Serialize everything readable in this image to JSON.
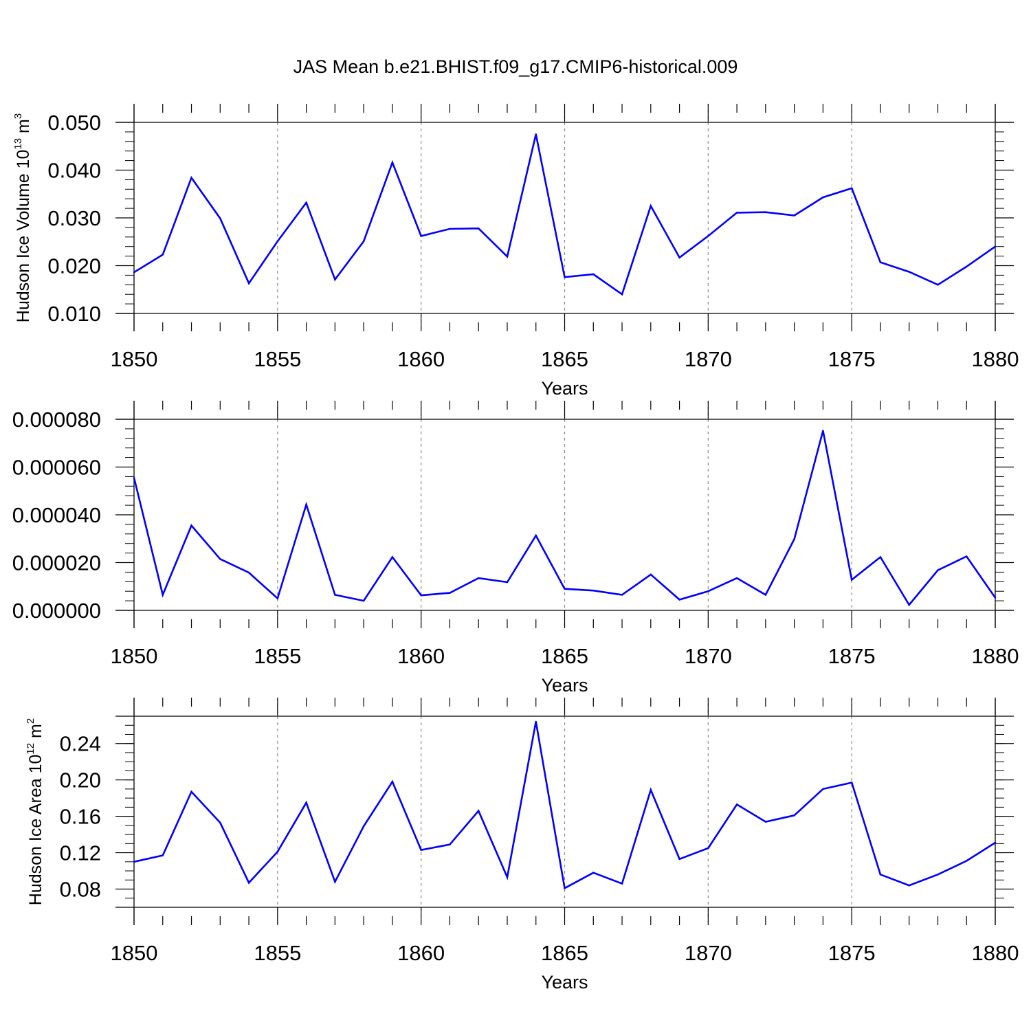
{
  "title": "JAS Mean b.e21.BHIST.f09_g17.CMIP6-historical.009",
  "colors": {
    "series": "#0000ff",
    "axis": "#000000",
    "grid": "#888888"
  },
  "chart_data": [
    {
      "type": "line",
      "xlabel": "Years",
      "ylabel": {
        "text": "Hudson Ice Volume 10",
        "sup": "13",
        "unit": " m",
        "unit_sup": "3"
      },
      "xlim": [
        1850,
        1880
      ],
      "ylim": [
        0.01,
        0.05
      ],
      "x_ticks": [
        "1850",
        "1855",
        "1860",
        "1865",
        "1870",
        "1875",
        "1880"
      ],
      "y_ticks": [
        {
          "value": 0.01,
          "label": "0.010"
        },
        {
          "value": 0.02,
          "label": "0.020"
        },
        {
          "value": 0.03,
          "label": "0.030"
        },
        {
          "value": 0.04,
          "label": "0.040"
        },
        {
          "value": 0.05,
          "label": "0.050"
        }
      ],
      "y_minor_step": 0.002,
      "grid": "vertical dashed at labeled years",
      "x": [
        1850,
        1851,
        1852,
        1853,
        1854,
        1855,
        1856,
        1857,
        1858,
        1859,
        1860,
        1861,
        1862,
        1863,
        1864,
        1865,
        1866,
        1867,
        1868,
        1869,
        1870,
        1871,
        1872,
        1873,
        1874,
        1875,
        1876,
        1877,
        1878,
        1879,
        1880
      ],
      "values": [
        0.0186,
        0.0223,
        0.0384,
        0.0299,
        0.0163,
        0.0251,
        0.0332,
        0.0171,
        0.0251,
        0.0416,
        0.0262,
        0.0277,
        0.0278,
        0.0219,
        0.0475,
        0.0176,
        0.0182,
        0.014,
        0.0325,
        0.0217,
        0.0262,
        0.0311,
        0.0312,
        0.0305,
        0.0343,
        0.0362,
        0.0207,
        0.0187,
        0.016,
        0.0198,
        0.024
      ]
    },
    {
      "type": "line",
      "xlabel": "Years",
      "ylabel": null,
      "xlim": [
        1850,
        1880
      ],
      "ylim": [
        0,
        8e-05
      ],
      "x_ticks": [
        "1850",
        "1855",
        "1860",
        "1865",
        "1870",
        "1875",
        "1880"
      ],
      "y_ticks": [
        {
          "value": 0.0,
          "label": "0.000000"
        },
        {
          "value": 2e-05,
          "label": "0.000020"
        },
        {
          "value": 4e-05,
          "label": "0.000040"
        },
        {
          "value": 6e-05,
          "label": "0.000060"
        },
        {
          "value": 8e-05,
          "label": "0.000080"
        }
      ],
      "y_minor_step": 4e-06,
      "grid": "vertical dashed at labeled years",
      "x": [
        1850,
        1851,
        1852,
        1853,
        1854,
        1855,
        1856,
        1857,
        1858,
        1859,
        1860,
        1861,
        1862,
        1863,
        1864,
        1865,
        1866,
        1867,
        1868,
        1869,
        1870,
        1871,
        1872,
        1873,
        1874,
        1875,
        1876,
        1877,
        1878,
        1879,
        1880
      ],
      "values": [
        5.55e-05,
        6.5e-06,
        3.55e-05,
        2.15e-05,
        1.58e-05,
        5e-06,
        4.43e-05,
        6.5e-06,
        4e-06,
        2.23e-05,
        6.3e-06,
        7.3e-06,
        1.35e-05,
        1.18e-05,
        3.13e-05,
        9e-06,
        8.3e-06,
        6.5e-06,
        1.5e-05,
        4.5e-06,
        8e-06,
        1.35e-05,
        6.5e-06,
        2.98e-05,
        7.52e-05,
        1.28e-05,
        2.23e-05,
        2.3e-06,
        1.68e-05,
        2.26e-05,
        5.3e-06
      ]
    },
    {
      "type": "line",
      "xlabel": "Years",
      "ylabel": {
        "text": "Hudson Ice Area 10",
        "sup": "12",
        "unit": " m",
        "unit_sup": "2"
      },
      "xlim": [
        1850,
        1880
      ],
      "ylim": [
        0.06,
        0.27
      ],
      "x_ticks": [
        "1850",
        "1855",
        "1860",
        "1865",
        "1870",
        "1875",
        "1880"
      ],
      "y_ticks": [
        {
          "value": 0.08,
          "label": "0.08"
        },
        {
          "value": 0.12,
          "label": "0.12"
        },
        {
          "value": 0.16,
          "label": "0.16"
        },
        {
          "value": 0.2,
          "label": "0.20"
        },
        {
          "value": 0.24,
          "label": "0.24"
        }
      ],
      "y_minor_step": 0.01,
      "grid": "vertical dashed at labeled years",
      "x": [
        1850,
        1851,
        1852,
        1853,
        1854,
        1855,
        1856,
        1857,
        1858,
        1859,
        1860,
        1861,
        1862,
        1863,
        1864,
        1865,
        1866,
        1867,
        1868,
        1869,
        1870,
        1871,
        1872,
        1873,
        1874,
        1875,
        1876,
        1877,
        1878,
        1879,
        1880
      ],
      "values": [
        0.11,
        0.117,
        0.187,
        0.153,
        0.087,
        0.121,
        0.175,
        0.088,
        0.149,
        0.198,
        0.123,
        0.129,
        0.166,
        0.093,
        0.264,
        0.081,
        0.098,
        0.086,
        0.189,
        0.113,
        0.125,
        0.173,
        0.154,
        0.161,
        0.19,
        0.197,
        0.096,
        0.084,
        0.096,
        0.111,
        0.131
      ]
    }
  ]
}
